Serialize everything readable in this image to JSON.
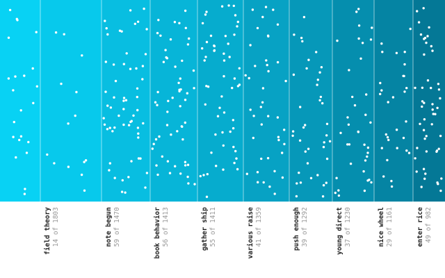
{
  "chart_data": {
    "type": "scatter",
    "columns": [
      {
        "name": "",
        "count": "",
        "color": "#08d2f4"
      },
      {
        "name": "field theory",
        "count": "14 of 1803",
        "color": "#07c9ec"
      },
      {
        "name": "note begun",
        "count": "59 of 1470",
        "color": "#08bee1"
      },
      {
        "name": "book behavior",
        "count": "56 of 1413",
        "color": "#07b5d8"
      },
      {
        "name": "gather ship",
        "count": "55 of 1411",
        "color": "#06acce"
      },
      {
        "name": "various raise",
        "count": "41 of 1359",
        "color": "#07a2c4"
      },
      {
        "name": "push enough",
        "count": "39 of 1292",
        "color": "#0698b9"
      },
      {
        "name": "young direct",
        "count": "37 of 1230",
        "color": "#058eae"
      },
      {
        "name": "nice wheel",
        "count": "29 of 1161",
        "color": "#0584a3"
      },
      {
        "name": "enter rice",
        "count": "49 of 982",
        "color": "#047896"
      }
    ],
    "dot_color": "#ffffff",
    "grid": false,
    "legend": "none"
  }
}
